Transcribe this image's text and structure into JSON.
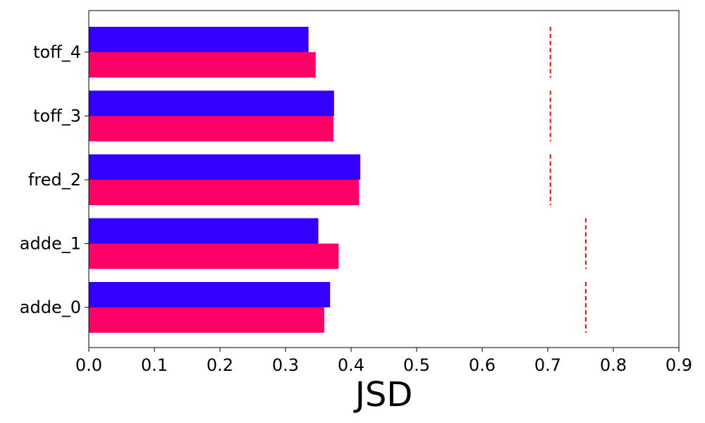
{
  "chart_data": {
    "type": "bar",
    "orientation": "horizontal",
    "title": "",
    "xlabel": "JSD",
    "ylabel": "",
    "xlim": [
      0,
      0.9
    ],
    "x_ticks": [
      "0.0",
      "0.1",
      "0.2",
      "0.3",
      "0.4",
      "0.5",
      "0.6",
      "0.7",
      "0.8",
      "0.9"
    ],
    "categories": [
      "adde_0",
      "adde_1",
      "fred_2",
      "toff_3",
      "toff_4"
    ],
    "series": [
      {
        "color": "#3300ff",
        "values": [
          0.368,
          0.35,
          0.414,
          0.374,
          0.335
        ]
      },
      {
        "color": "#ff0066",
        "values": [
          0.359,
          0.381,
          0.412,
          0.373,
          0.346
        ]
      }
    ],
    "reference_lines": {
      "color": "#ff0000",
      "style": "dashed",
      "values": [
        0.758,
        0.758,
        0.704,
        0.704,
        0.704
      ]
    },
    "grid": false,
    "legend": "none"
  }
}
